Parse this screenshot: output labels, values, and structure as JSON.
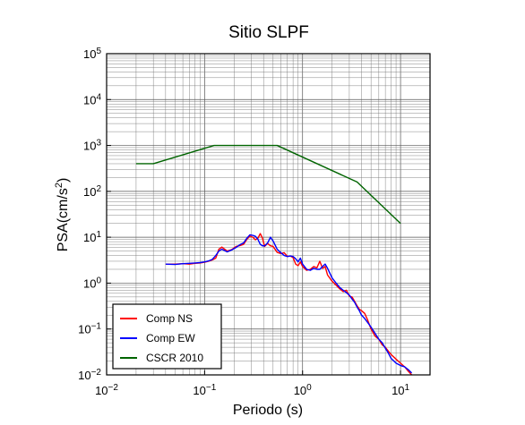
{
  "chart_data": {
    "type": "line",
    "title": "Sitio SLPF",
    "xlabel": "Periodo (s)",
    "ylabel_parts": [
      "PSA(cm/s",
      "2",
      ")"
    ],
    "x_scale": "log",
    "y_scale": "log",
    "xlim": [
      0.01,
      20
    ],
    "ylim": [
      0.01,
      100000
    ],
    "grid": true,
    "legend_placement": "bottom-left",
    "x_ticks": [
      {
        "value": 0.01,
        "base": "10",
        "exp": "−2"
      },
      {
        "value": 0.1,
        "base": "10",
        "exp": "−1"
      },
      {
        "value": 1,
        "base": "10",
        "exp": "0"
      },
      {
        "value": 10,
        "base": "10",
        "exp": "1"
      }
    ],
    "y_ticks": [
      {
        "value": 0.01,
        "base": "10",
        "exp": "−2"
      },
      {
        "value": 0.1,
        "base": "10",
        "exp": "−1"
      },
      {
        "value": 1,
        "base": "10",
        "exp": "0"
      },
      {
        "value": 10,
        "base": "10",
        "exp": "1"
      },
      {
        "value": 100,
        "base": "10",
        "exp": "2"
      },
      {
        "value": 1000,
        "base": "10",
        "exp": "3"
      },
      {
        "value": 10000,
        "base": "10",
        "exp": "4"
      },
      {
        "value": 100000,
        "base": "10",
        "exp": "5"
      }
    ],
    "series": [
      {
        "name": "Comp NS",
        "color": "#ff0000",
        "points": [
          [
            0.04,
            2.6
          ],
          [
            0.05,
            2.6
          ],
          [
            0.06,
            2.65
          ],
          [
            0.07,
            2.6
          ],
          [
            0.08,
            2.7
          ],
          [
            0.09,
            2.75
          ],
          [
            0.1,
            2.85
          ],
          [
            0.11,
            3.0
          ],
          [
            0.12,
            3.2
          ],
          [
            0.13,
            3.5
          ],
          [
            0.14,
            5.5
          ],
          [
            0.15,
            6.1
          ],
          [
            0.17,
            5.0
          ],
          [
            0.19,
            5.4
          ],
          [
            0.21,
            6.3
          ],
          [
            0.23,
            6.6
          ],
          [
            0.25,
            7.0
          ],
          [
            0.27,
            9.0
          ],
          [
            0.29,
            10.6
          ],
          [
            0.31,
            10.0
          ],
          [
            0.33,
            8.8
          ],
          [
            0.35,
            9.5
          ],
          [
            0.37,
            12.0
          ],
          [
            0.39,
            9.5
          ],
          [
            0.41,
            6.3
          ],
          [
            0.44,
            7.3
          ],
          [
            0.47,
            6.5
          ],
          [
            0.5,
            6.3
          ],
          [
            0.55,
            4.7
          ],
          [
            0.6,
            4.4
          ],
          [
            0.65,
            4.6
          ],
          [
            0.7,
            3.8
          ],
          [
            0.75,
            3.9
          ],
          [
            0.8,
            3.6
          ],
          [
            0.85,
            2.6
          ],
          [
            0.9,
            2.4
          ],
          [
            0.95,
            2.9
          ],
          [
            1.0,
            2.3
          ],
          [
            1.1,
            1.9
          ],
          [
            1.2,
            2.0
          ],
          [
            1.3,
            2.3
          ],
          [
            1.4,
            2.15
          ],
          [
            1.5,
            3.0
          ],
          [
            1.6,
            2.1
          ],
          [
            1.7,
            2.3
          ],
          [
            1.8,
            1.5
          ],
          [
            2.0,
            1.1
          ],
          [
            2.2,
            0.9
          ],
          [
            2.4,
            0.75
          ],
          [
            2.6,
            0.65
          ],
          [
            2.8,
            0.7
          ],
          [
            3.0,
            0.52
          ],
          [
            3.2,
            0.5
          ],
          [
            3.4,
            0.4
          ],
          [
            3.6,
            0.32
          ],
          [
            3.8,
            0.27
          ],
          [
            4.0,
            0.25
          ],
          [
            4.3,
            0.22
          ],
          [
            4.6,
            0.16
          ],
          [
            5.0,
            0.1
          ],
          [
            5.5,
            0.07
          ],
          [
            6.0,
            0.06
          ],
          [
            6.5,
            0.045
          ],
          [
            7.0,
            0.04
          ],
          [
            7.5,
            0.033
          ],
          [
            8.0,
            0.028
          ],
          [
            9.0,
            0.022
          ],
          [
            10.0,
            0.018
          ],
          [
            11.0,
            0.015
          ],
          [
            12.0,
            0.012
          ],
          [
            13.0,
            0.01
          ]
        ]
      },
      {
        "name": "Comp EW",
        "color": "#0000ff",
        "points": [
          [
            0.04,
            2.6
          ],
          [
            0.05,
            2.55
          ],
          [
            0.06,
            2.65
          ],
          [
            0.07,
            2.7
          ],
          [
            0.08,
            2.75
          ],
          [
            0.09,
            2.8
          ],
          [
            0.1,
            2.9
          ],
          [
            0.11,
            3.05
          ],
          [
            0.12,
            3.3
          ],
          [
            0.13,
            4.0
          ],
          [
            0.14,
            5.0
          ],
          [
            0.15,
            5.5
          ],
          [
            0.17,
            4.8
          ],
          [
            0.19,
            5.3
          ],
          [
            0.21,
            6.0
          ],
          [
            0.23,
            6.9
          ],
          [
            0.25,
            7.5
          ],
          [
            0.27,
            9.5
          ],
          [
            0.29,
            11.3
          ],
          [
            0.31,
            11.0
          ],
          [
            0.33,
            10.5
          ],
          [
            0.35,
            9.0
          ],
          [
            0.37,
            7.0
          ],
          [
            0.39,
            6.5
          ],
          [
            0.41,
            6.5
          ],
          [
            0.44,
            7.5
          ],
          [
            0.47,
            10.0
          ],
          [
            0.5,
            8.3
          ],
          [
            0.55,
            5.5
          ],
          [
            0.6,
            4.6
          ],
          [
            0.65,
            4.0
          ],
          [
            0.7,
            3.8
          ],
          [
            0.75,
            3.9
          ],
          [
            0.8,
            3.8
          ],
          [
            0.85,
            3.4
          ],
          [
            0.9,
            2.9
          ],
          [
            0.95,
            3.5
          ],
          [
            1.0,
            2.6
          ],
          [
            1.1,
            2.0
          ],
          [
            1.2,
            1.9
          ],
          [
            1.3,
            2.1
          ],
          [
            1.4,
            2.0
          ],
          [
            1.5,
            2.0
          ],
          [
            1.6,
            2.3
          ],
          [
            1.7,
            2.6
          ],
          [
            1.8,
            2.1
          ],
          [
            2.0,
            1.3
          ],
          [
            2.2,
            1.0
          ],
          [
            2.4,
            0.8
          ],
          [
            2.6,
            0.7
          ],
          [
            2.8,
            0.62
          ],
          [
            3.0,
            0.55
          ],
          [
            3.2,
            0.45
          ],
          [
            3.4,
            0.38
          ],
          [
            3.6,
            0.3
          ],
          [
            3.8,
            0.25
          ],
          [
            4.0,
            0.2
          ],
          [
            4.3,
            0.17
          ],
          [
            4.6,
            0.14
          ],
          [
            5.0,
            0.11
          ],
          [
            5.5,
            0.08
          ],
          [
            6.0,
            0.06
          ],
          [
            6.5,
            0.05
          ],
          [
            7.0,
            0.038
          ],
          [
            7.5,
            0.03
          ],
          [
            8.0,
            0.023
          ],
          [
            9.0,
            0.018
          ],
          [
            10.0,
            0.016
          ],
          [
            11.0,
            0.015
          ],
          [
            12.0,
            0.013
          ],
          [
            13.0,
            0.011
          ]
        ]
      },
      {
        "name": "CSCR 2010",
        "color": "#006400",
        "points": [
          [
            0.02,
            400
          ],
          [
            0.03,
            400
          ],
          [
            0.125,
            1000
          ],
          [
            0.55,
            1000
          ],
          [
            3.6,
            160
          ],
          [
            10,
            20
          ]
        ]
      }
    ]
  }
}
